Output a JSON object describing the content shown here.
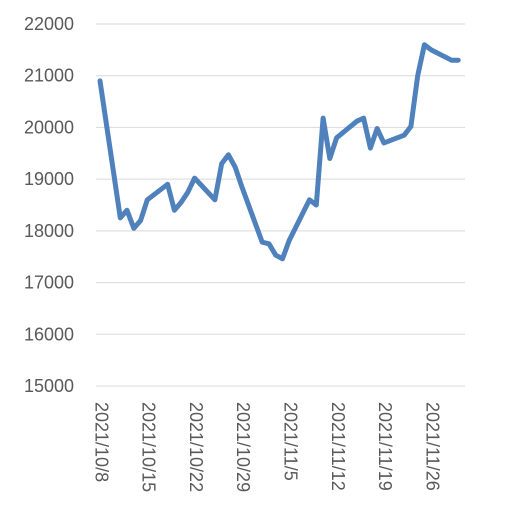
{
  "chart_data": {
    "type": "line",
    "title": "",
    "xlabel": "",
    "ylabel": "",
    "ylim": [
      15000,
      22000
    ],
    "yticks": [
      15000,
      16000,
      17000,
      18000,
      19000,
      20000,
      21000,
      22000
    ],
    "ytick_labels": [
      "15000",
      "16000",
      "17000",
      "18000",
      "19000",
      "20000",
      "21000",
      "22000"
    ],
    "xticks": [
      "2021-10-08",
      "2021-10-15",
      "2021-10-22",
      "2021-10-29",
      "2021-11-05",
      "2021-11-12",
      "2021-11-19",
      "2021-11-26"
    ],
    "xtick_labels": [
      "2021/10/8",
      "2021/10/15",
      "2021/10/22",
      "2021/10/29",
      "2021/11/5",
      "2021/11/12",
      "2021/11/19",
      "2021/11/26"
    ],
    "xlim": [
      "2021-10-08",
      "2021-12-01"
    ],
    "grid": true,
    "legend": "none",
    "line_color": "#4f81bd",
    "series": [
      {
        "x": [
          "2021-10-08",
          "2021-10-11",
          "2021-10-12",
          "2021-10-13",
          "2021-10-14",
          "2021-10-15",
          "2021-10-18",
          "2021-10-19",
          "2021-10-20",
          "2021-10-21",
          "2021-10-22",
          "2021-10-25",
          "2021-10-26",
          "2021-10-27",
          "2021-10-28",
          "2021-10-29",
          "2021-11-01",
          "2021-11-02",
          "2021-11-03",
          "2021-11-04",
          "2021-11-05",
          "2021-11-08",
          "2021-11-09",
          "2021-11-10",
          "2021-11-11",
          "2021-11-12",
          "2021-11-15",
          "2021-11-16",
          "2021-11-17",
          "2021-11-18",
          "2021-11-19",
          "2021-11-22",
          "2021-11-23",
          "2021-11-24",
          "2021-11-25",
          "2021-11-26",
          "2021-11-29",
          "2021-11-30"
        ],
        "y": [
          20900,
          18250,
          18400,
          18050,
          18200,
          18600,
          18900,
          18400,
          18550,
          18750,
          19020,
          18600,
          19300,
          19470,
          19230,
          18850,
          17780,
          17750,
          17530,
          17460,
          17820,
          18600,
          18500,
          20180,
          19400,
          19800,
          20120,
          20180,
          19600,
          19980,
          19700,
          19850,
          20020,
          21000,
          21600,
          21500,
          21300,
          21300
        ]
      }
    ]
  }
}
